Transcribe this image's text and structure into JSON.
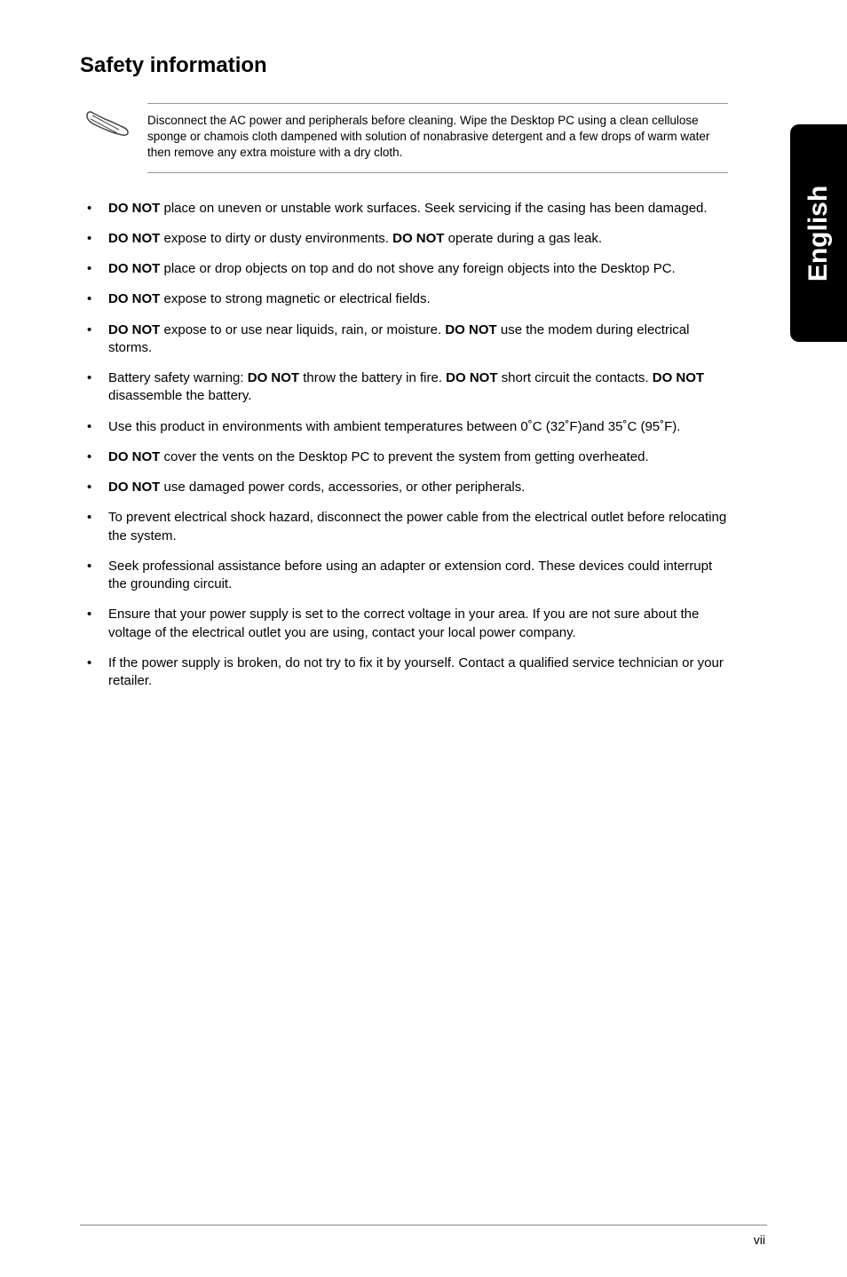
{
  "title": "Safety information",
  "sideTab": "English",
  "pageNumber": "vii",
  "note": {
    "text": "Disconnect the AC power and peripherals before cleaning. Wipe the Desktop PC using a clean cellulose sponge or chamois cloth dampened with solution of nonabrasive detergent and a few drops of warm water then remove any extra moisture with a dry cloth."
  },
  "bullets": [
    {
      "segments": [
        {
          "b": true,
          "t": "DO NOT"
        },
        {
          "b": false,
          "t": " place on uneven or unstable work surfaces. Seek servicing if the casing has been damaged."
        }
      ]
    },
    {
      "segments": [
        {
          "b": true,
          "t": "DO NOT"
        },
        {
          "b": false,
          "t": " expose to dirty or dusty environments. "
        },
        {
          "b": true,
          "t": "DO NOT"
        },
        {
          "b": false,
          "t": " operate during a gas leak."
        }
      ]
    },
    {
      "segments": [
        {
          "b": true,
          "t": "DO NOT"
        },
        {
          "b": false,
          "t": " place or drop objects on top and do not shove any foreign objects into the Desktop PC."
        }
      ]
    },
    {
      "segments": [
        {
          "b": true,
          "t": "DO NOT"
        },
        {
          "b": false,
          "t": " expose to strong magnetic or electrical fields."
        }
      ]
    },
    {
      "segments": [
        {
          "b": true,
          "t": "DO NOT"
        },
        {
          "b": false,
          "t": " expose to or use near liquids, rain, or moisture. "
        },
        {
          "b": true,
          "t": "DO NOT"
        },
        {
          "b": false,
          "t": " use the modem during electrical storms."
        }
      ]
    },
    {
      "segments": [
        {
          "b": false,
          "t": "Battery safety warning: "
        },
        {
          "b": true,
          "t": "DO NOT"
        },
        {
          "b": false,
          "t": " throw the battery in fire. "
        },
        {
          "b": true,
          "t": "DO NOT"
        },
        {
          "b": false,
          "t": " short circuit the contacts. "
        },
        {
          "b": true,
          "t": "DO NOT"
        },
        {
          "b": false,
          "t": " disassemble the battery."
        }
      ]
    },
    {
      "segments": [
        {
          "b": false,
          "t": "Use this product in environments with ambient temperatures between 0˚C (32˚F)and 35˚C (95˚F)."
        }
      ]
    },
    {
      "segments": [
        {
          "b": true,
          "t": "DO NOT"
        },
        {
          "b": false,
          "t": " cover the vents on the Desktop PC to prevent the system from getting overheated."
        }
      ]
    },
    {
      "segments": [
        {
          "b": true,
          "t": "DO NOT"
        },
        {
          "b": false,
          "t": " use damaged power cords, accessories, or other peripherals."
        }
      ]
    },
    {
      "segments": [
        {
          "b": false,
          "t": "To prevent electrical shock hazard, disconnect the power cable from the electrical outlet before relocating the system."
        }
      ]
    },
    {
      "segments": [
        {
          "b": false,
          "t": "Seek professional assistance before using an adapter or extension cord. These devices could interrupt the grounding circuit."
        }
      ]
    },
    {
      "segments": [
        {
          "b": false,
          "t": "Ensure that your power supply is set to the correct voltage in your area. If you are not sure about the voltage of the electrical outlet you are using, contact your local power company."
        }
      ]
    },
    {
      "segments": [
        {
          "b": false,
          "t": "If the power supply is broken, do not try to fix it by yourself. Contact a qualified service technician or your retailer."
        }
      ]
    }
  ]
}
